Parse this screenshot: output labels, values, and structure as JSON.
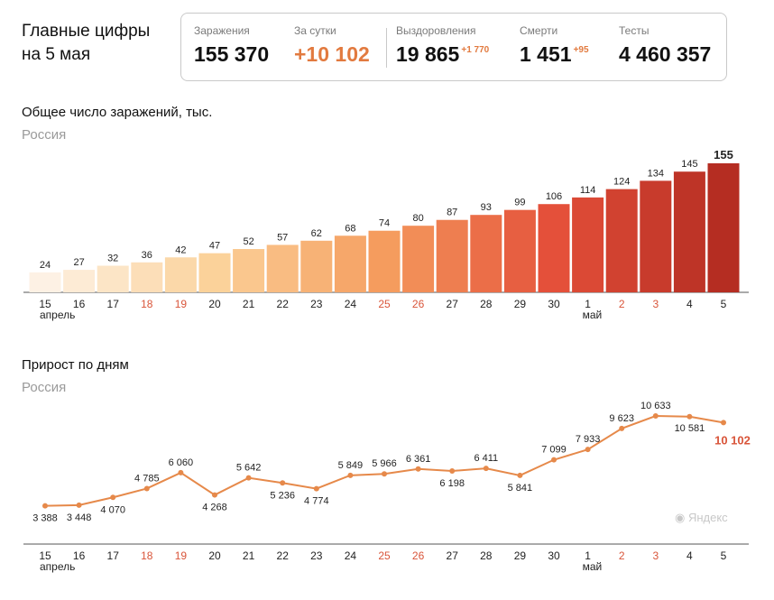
{
  "headline": {
    "line1": "Главные цифры",
    "line2": "на 5 мая"
  },
  "stats": [
    {
      "label": "Заражения",
      "value": "155 370",
      "delta": ""
    },
    {
      "label": "За сутки",
      "value": "+10 102",
      "delta": ""
    },
    {
      "label": "Выздоровления",
      "value": "19 865",
      "delta": "+1 770"
    },
    {
      "label": "Смерти",
      "value": "1 451",
      "delta": "+95"
    },
    {
      "label": "Тесты",
      "value": "4 460 357",
      "delta": ""
    }
  ],
  "colors": {
    "accent": "#e27a3f",
    "weekend": "#d9553a",
    "text": "#111111",
    "muted": "#9a9a9a",
    "line": "#e6894a"
  },
  "watermark": "Яндекс",
  "chart_data": [
    {
      "type": "bar",
      "title": "Общее число заражений, тыс.",
      "subtitle": "Россия",
      "categories": [
        "15",
        "16",
        "17",
        "18",
        "19",
        "20",
        "21",
        "22",
        "23",
        "24",
        "25",
        "26",
        "27",
        "28",
        "29",
        "30",
        "1",
        "2",
        "3",
        "4",
        "5"
      ],
      "values": [
        24,
        27,
        32,
        36,
        42,
        47,
        52,
        57,
        62,
        68,
        74,
        80,
        87,
        93,
        99,
        106,
        114,
        124,
        134,
        145,
        155
      ],
      "month_labels": [
        {
          "index": 0,
          "label": "апрель"
        },
        {
          "index": 16,
          "label": "май"
        }
      ],
      "weekend_indices": [
        3,
        4,
        10,
        11,
        17,
        18
      ],
      "ylim": [
        0,
        155
      ]
    },
    {
      "type": "line",
      "title": "Прирост по дням",
      "subtitle": "Россия",
      "categories": [
        "15",
        "16",
        "17",
        "18",
        "19",
        "20",
        "21",
        "22",
        "23",
        "24",
        "25",
        "26",
        "27",
        "28",
        "29",
        "30",
        "1",
        "2",
        "3",
        "4",
        "5"
      ],
      "values": [
        3388,
        3448,
        4070,
        4785,
        6060,
        4268,
        5642,
        5236,
        4774,
        5849,
        5966,
        6361,
        6198,
        6411,
        5841,
        7099,
        7933,
        9623,
        10633,
        10581,
        10102
      ],
      "value_labels": [
        "3 388",
        "3 448",
        "4 070",
        "4 785",
        "6 060",
        "4 268",
        "5 642",
        "5 236",
        "4 774",
        "5 849",
        "5 966",
        "6 361",
        "6 198",
        "6 411",
        "5 841",
        "7 099",
        "7 933",
        "9 623",
        "10 633",
        "10 581",
        "10 102"
      ],
      "month_labels": [
        {
          "index": 0,
          "label": "апрель"
        },
        {
          "index": 16,
          "label": "май"
        }
      ],
      "weekend_indices": [
        3,
        4,
        10,
        11,
        17,
        18
      ]
    }
  ]
}
